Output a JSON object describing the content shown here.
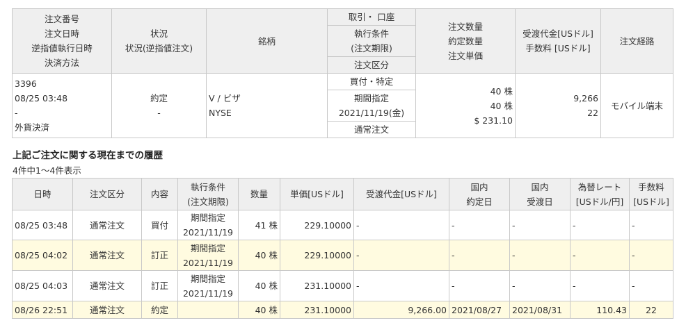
{
  "order_table": {
    "headers": {
      "order_info": [
        "注文番号",
        "注文日時",
        "逆指値執行日時",
        "決済方法"
      ],
      "status": [
        "状況",
        "状況(逆指値注文)"
      ],
      "symbol": "銘柄",
      "trade_account": "取引・ 口座",
      "exec_condition": [
        "執行条件",
        "(注文期限)"
      ],
      "order_type": "注文区分",
      "quantity": [
        "注文数量",
        "約定数量",
        "注文単価"
      ],
      "settlement": [
        "受渡代金[USドル]",
        "手数料 [USドル]"
      ],
      "route": "注文経路"
    },
    "row": {
      "order_info": [
        "3396",
        "08/25 03:48",
        "-",
        "外貨決済"
      ],
      "status": [
        "約定",
        "-"
      ],
      "symbol": [
        "V / ビザ",
        "NYSE"
      ],
      "trade_account": "買付・特定",
      "exec_condition": [
        "期間指定",
        "2021/11/19(金)"
      ],
      "order_type": "通常注文",
      "quantity": [
        "40 株",
        "40 株",
        "$ 231.10"
      ],
      "settlement": [
        "9,266",
        "22"
      ],
      "route": "モバイル端末"
    }
  },
  "history": {
    "heading": "上記ご注文に関する現在までの履歴",
    "count": "4件中1～4件表示",
    "headers": [
      [
        "日時"
      ],
      [
        "注文区分"
      ],
      [
        "内容"
      ],
      [
        "執行条件",
        "(注文期限)"
      ],
      [
        "数量"
      ],
      [
        "単価[USドル]"
      ],
      [
        "受渡代金[USドル]"
      ],
      [
        "国内",
        "約定日"
      ],
      [
        "国内",
        "受渡日"
      ],
      [
        "為替レート",
        "[USドル/円]"
      ],
      [
        "手数料",
        "[USドル]"
      ]
    ],
    "rows": [
      {
        "datetime": "08/25 03:48",
        "type": "通常注文",
        "content": "買付",
        "cond": [
          "期間指定",
          "2021/11/19"
        ],
        "qty": "41 株",
        "price": "229.10000",
        "amount": "-",
        "trade_date": "-",
        "settle_date": "-",
        "rate": "-",
        "fee": "-"
      },
      {
        "datetime": "08/25 04:02",
        "type": "通常注文",
        "content": "訂正",
        "cond": [
          "期間指定",
          "2021/11/19"
        ],
        "qty": "40 株",
        "price": "229.10000",
        "amount": "-",
        "trade_date": "-",
        "settle_date": "-",
        "rate": "-",
        "fee": "-"
      },
      {
        "datetime": "08/25 04:03",
        "type": "通常注文",
        "content": "訂正",
        "cond": [
          "期間指定",
          "2021/11/19"
        ],
        "qty": "40 株",
        "price": "231.10000",
        "amount": "-",
        "trade_date": "-",
        "settle_date": "-",
        "rate": "-",
        "fee": "-"
      },
      {
        "datetime": "08/26 22:51",
        "type": "通常注文",
        "content": "約定",
        "cond": [
          "",
          ""
        ],
        "qty": "40 株",
        "price": "231.10000",
        "amount": "9,266.00",
        "trade_date": "2021/08/27",
        "settle_date": "2021/08/31",
        "rate": "110.43",
        "fee": "22"
      }
    ]
  },
  "colors": {
    "header_bg": "#efefef",
    "highlight_row": "#fffbe0",
    "border": "#c8c8c8"
  }
}
